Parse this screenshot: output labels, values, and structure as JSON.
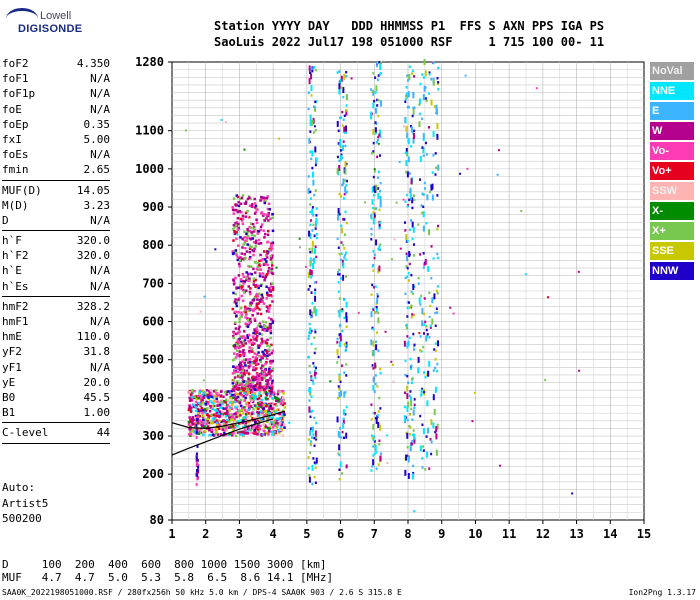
{
  "logo": {
    "line1": "Lowell",
    "line2": "DIGISONDE"
  },
  "header": {
    "row1": "Station YYYY DAY   DDD HHMMSS P1  FFS S AXN PPS IGA PS",
    "row2": "SaoLuis 2022 Jul17 198 051000 RSF     1 715 100 00- 11"
  },
  "params": {
    "group1": [
      {
        "k": "foF2",
        "v": "4.350"
      },
      {
        "k": "foF1",
        "v": "N/A"
      },
      {
        "k": "foF1p",
        "v": "N/A"
      },
      {
        "k": "foE",
        "v": "N/A"
      },
      {
        "k": "foEp",
        "v": "0.35"
      },
      {
        "k": "fxI",
        "v": "5.00"
      },
      {
        "k": "foEs",
        "v": "N/A"
      },
      {
        "k": "fmin",
        "v": "2.65"
      }
    ],
    "group2": [
      {
        "k": "MUF(D)",
        "v": "14.05"
      },
      {
        "k": "M(D)",
        "v": "3.23"
      },
      {
        "k": "D",
        "v": "N/A"
      }
    ],
    "group3": [
      {
        "k": "h`F",
        "v": "320.0"
      },
      {
        "k": "h`F2",
        "v": "320.0"
      },
      {
        "k": "h`E",
        "v": "N/A"
      },
      {
        "k": "h`Es",
        "v": "N/A"
      }
    ],
    "group4": [
      {
        "k": "hmF2",
        "v": "328.2"
      },
      {
        "k": "hmF1",
        "v": "N/A"
      },
      {
        "k": "hmE",
        "v": "110.0"
      },
      {
        "k": "yF2",
        "v": "31.8"
      },
      {
        "k": "yF1",
        "v": "N/A"
      },
      {
        "k": "yE",
        "v": "20.0"
      },
      {
        "k": "B0",
        "v": "45.5"
      },
      {
        "k": "B1",
        "v": "1.00"
      }
    ],
    "group5": [
      {
        "k": "C-level",
        "v": "44"
      }
    ]
  },
  "auto": {
    "line1": "Auto:",
    "line2": "Artist5",
    "line3": "500200"
  },
  "legend": [
    {
      "label": "NoVal",
      "color": "#a0a0a0"
    },
    {
      "label": "NNE",
      "color": "#00e6ff"
    },
    {
      "label": "E",
      "color": "#3cb4ff"
    },
    {
      "label": "W",
      "color": "#b4008c"
    },
    {
      "label": "Vo-",
      "color": "#ff3cb4"
    },
    {
      "label": "Vo+",
      "color": "#e6001e"
    },
    {
      "label": "SSW",
      "color": "#ffb4b4"
    },
    {
      "label": "X-",
      "color": "#008c00"
    },
    {
      "label": "X+",
      "color": "#78c850"
    },
    {
      "label": "SSE",
      "color": "#c8c800"
    },
    {
      "label": "NNW",
      "color": "#1e00c8"
    }
  ],
  "muf_table": {
    "row1": "D     100  200  400  600  800 1000 1500 3000 [km]",
    "row2": "MUF   4.7  4.7  5.0  5.3  5.8  6.5  8.6 14.1 [MHz]"
  },
  "footer": "SAA0K_2022198051000.RSF / 280fx256h 50 kHz 5.0 km / DPS-4 SAA0K 903 / 2.6 S 315.8 E",
  "version": "Ion2Png 1.3.17",
  "chart_data": {
    "type": "scatter",
    "title": "",
    "xlabel": "",
    "ylabel": "",
    "xlim": [
      1,
      15
    ],
    "ylim": [
      80,
      1280
    ],
    "x_ticks": [
      "1",
      "2",
      "3",
      "4",
      "5",
      "6",
      "7",
      "8",
      "9",
      "10",
      "11",
      "12",
      "13",
      "14",
      "15"
    ],
    "y_ticks": [
      "80",
      "200",
      "300",
      "400",
      "500",
      "600",
      "700",
      "800",
      "900",
      "1000",
      "1100",
      "1280"
    ],
    "grid": true,
    "legend_placement": "right",
    "trace_F_layer": [
      {
        "f": 1.0,
        "h": 335
      },
      {
        "f": 1.5,
        "h": 322
      },
      {
        "f": 2.0,
        "h": 320
      },
      {
        "f": 2.5,
        "h": 326
      },
      {
        "f": 3.0,
        "h": 335
      },
      {
        "f": 3.5,
        "h": 345
      },
      {
        "f": 4.0,
        "h": 356
      },
      {
        "f": 4.35,
        "h": 365
      }
    ],
    "trace_lower": [
      {
        "f": 1.0,
        "h": 250
      },
      {
        "f": 1.5,
        "h": 268
      },
      {
        "f": 2.0,
        "h": 285
      },
      {
        "f": 2.5,
        "h": 302
      },
      {
        "f": 3.0,
        "h": 318
      },
      {
        "f": 3.5,
        "h": 332
      },
      {
        "f": 4.0,
        "h": 345
      }
    ],
    "spread_F_echoes": [
      {
        "f_min": 1.5,
        "f_max": 4.35,
        "h_min": 300,
        "h_max": 420
      },
      {
        "f_min": 2.8,
        "f_max": 4.0,
        "h_min": 420,
        "h_max": 930
      },
      {
        "f_min": 5.05,
        "f_max": 5.3,
        "h_min": 170,
        "h_max": 1280
      },
      {
        "f_min": 5.9,
        "f_max": 6.2,
        "h_min": 170,
        "h_max": 1280
      },
      {
        "f_min": 6.9,
        "f_max": 7.2,
        "h_min": 200,
        "h_max": 1280
      },
      {
        "f_min": 7.9,
        "f_max": 8.2,
        "h_min": 180,
        "h_max": 1280
      },
      {
        "f_min": 8.3,
        "f_max": 8.9,
        "h_min": 200,
        "h_max": 1280
      }
    ]
  }
}
